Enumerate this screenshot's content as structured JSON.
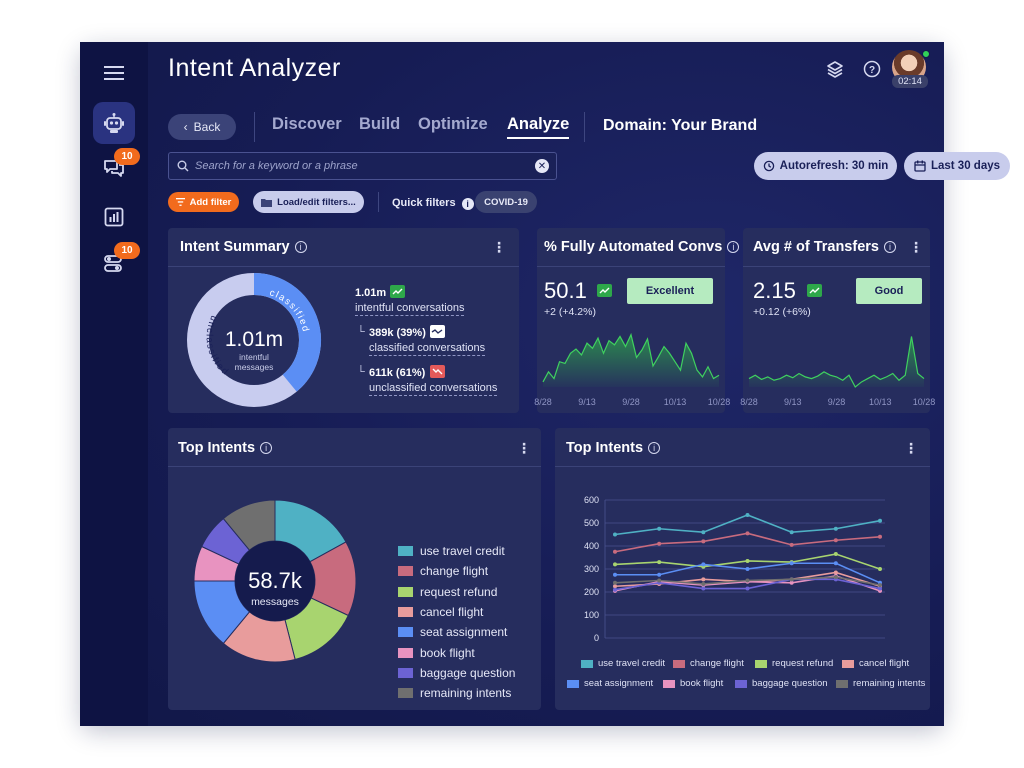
{
  "app": {
    "title": "Intent Analyzer",
    "time": "02:14"
  },
  "rail": {
    "badges": {
      "conversations": "10",
      "settings": "10"
    }
  },
  "nav": {
    "back": "Back",
    "tabs": [
      "Discover",
      "Build",
      "Optimize",
      "Analyze"
    ],
    "active_tab": "Analyze",
    "domain": "Domain: Your Brand"
  },
  "search": {
    "placeholder": "Search for a keyword or a phrase",
    "value": ""
  },
  "controls": {
    "autorefresh": "Autorefresh: 30 min",
    "date_range": "Last 30 days",
    "add_filter": "Add filter",
    "load_filters": "Load/edit filters...",
    "quick_filters_label": "Quick filters",
    "quick_filter_tag": "COVID-19"
  },
  "intent_summary": {
    "title": "Intent Summary",
    "center_value": "1.01m",
    "center_caption_1": "intentful",
    "center_caption_2": "messages",
    "arc_labels": {
      "classified": "classified",
      "unclassified": "unclassified"
    },
    "classified_fraction": 0.39,
    "total_value": "1.01m",
    "total_label": "intentful conversations",
    "classified_value": "389k (39%)",
    "classified_label": "classified conversations",
    "unclassified_value": "611k (61%)",
    "unclassified_label": "unclassified conversations",
    "colors": {
      "classified": "#5b8ef4",
      "unclassified": "#c8ccef"
    }
  },
  "automated": {
    "title": "% Fully Automated Convs",
    "value": "50.1",
    "delta": "+2 (+4.2%)",
    "rating": "Excellent",
    "ticks": [
      "8/28",
      "9/13",
      "9/28",
      "10/13",
      "10/28"
    ],
    "series": [
      6,
      18,
      10,
      30,
      28,
      40,
      45,
      38,
      52,
      46,
      58,
      40,
      55,
      50,
      60,
      48,
      62,
      35,
      44,
      57,
      25,
      36,
      48,
      40,
      30,
      20,
      52,
      40,
      20,
      12,
      24,
      10,
      14
    ]
  },
  "transfers": {
    "title": "Avg # of Transfers",
    "value": "2.15",
    "delta": "+0.12 (+6%)",
    "rating": "Good",
    "ticks": [
      "8/28",
      "9/13",
      "9/28",
      "10/13",
      "10/28"
    ],
    "series": [
      10,
      14,
      9,
      12,
      8,
      10,
      14,
      11,
      16,
      12,
      10,
      13,
      18,
      14,
      12,
      8,
      14,
      0,
      6,
      10,
      14,
      9,
      12,
      16,
      8,
      14,
      60,
      16,
      10
    ]
  },
  "top_intents_pie": {
    "title": "Top Intents",
    "center_value": "58.7k",
    "center_caption": "messages",
    "slices": [
      {
        "name": "use travel credit",
        "value": 17,
        "color": "#4fb1c4"
      },
      {
        "name": "change flight",
        "value": 15,
        "color": "#c86b7e"
      },
      {
        "name": "request refund",
        "value": 14,
        "color": "#a8d46f"
      },
      {
        "name": "cancel flight",
        "value": 15,
        "color": "#e89c9c"
      },
      {
        "name": "seat assignment",
        "value": 14,
        "color": "#5b8ef4"
      },
      {
        "name": "book flight",
        "value": 7,
        "color": "#e893c0"
      },
      {
        "name": "baggage question",
        "value": 7,
        "color": "#6c63d4"
      },
      {
        "name": "remaining intents",
        "value": 11,
        "color": "#6f6f6f"
      }
    ]
  },
  "chart_data": {
    "type": "line",
    "title": "Top Intents",
    "ylim": [
      0,
      600
    ],
    "yticks": [
      0,
      100,
      200,
      300,
      400,
      500,
      600
    ],
    "x": [
      1,
      2,
      3,
      4,
      5,
      6,
      7
    ],
    "series": [
      {
        "name": "use travel credit",
        "color": "#4fb1c4",
        "values": [
          450,
          475,
          460,
          535,
          460,
          475,
          510
        ]
      },
      {
        "name": "change flight",
        "color": "#c86b7e",
        "values": [
          375,
          410,
          420,
          455,
          405,
          425,
          440
        ]
      },
      {
        "name": "request refund",
        "color": "#a8d46f",
        "values": [
          320,
          330,
          310,
          335,
          330,
          365,
          300
        ]
      },
      {
        "name": "cancel flight",
        "color": "#e89c9c",
        "values": [
          225,
          235,
          255,
          245,
          255,
          285,
          225
        ]
      },
      {
        "name": "seat assignment",
        "color": "#5b8ef4",
        "values": [
          275,
          275,
          320,
          300,
          325,
          325,
          240
        ]
      },
      {
        "name": "book flight",
        "color": "#e893c0",
        "values": [
          205,
          245,
          230,
          245,
          240,
          270,
          205
        ]
      },
      {
        "name": "baggage question",
        "color": "#6c63d4",
        "values": [
          210,
          240,
          215,
          215,
          255,
          255,
          215
        ]
      },
      {
        "name": "remaining intents",
        "color": "#6f6f6f",
        "values": [
          240,
          250,
          235,
          250,
          255,
          265,
          230
        ]
      }
    ]
  }
}
